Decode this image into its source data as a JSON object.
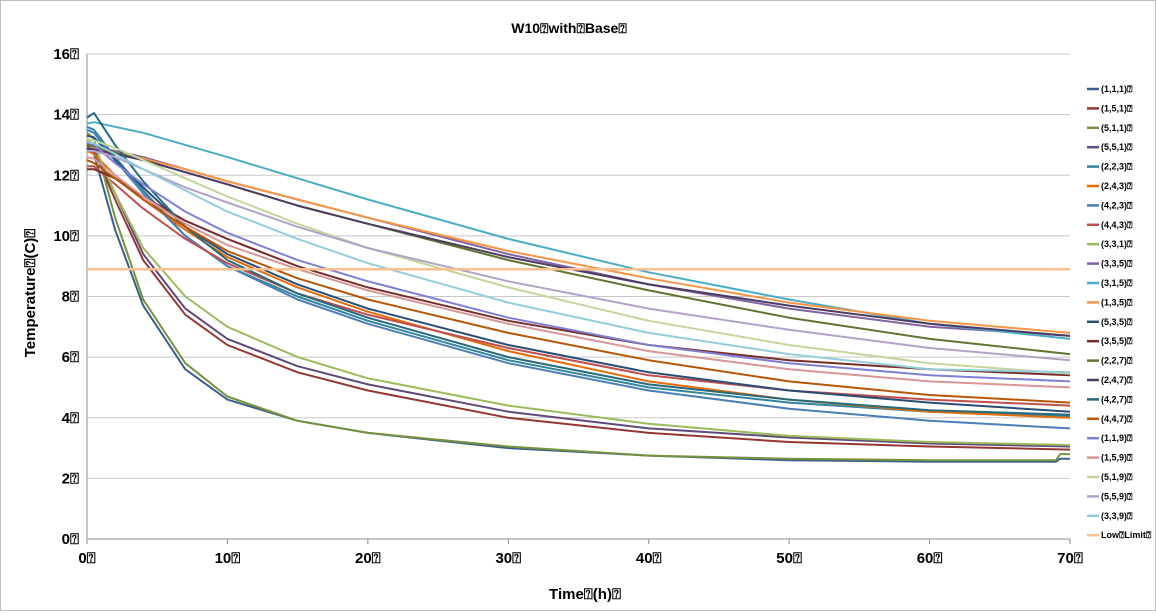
{
  "chart_data": {
    "type": "line",
    "title": "W10⍰with⍰Base⍰",
    "xlabel": "Time⍰(h)⍰",
    "ylabel": "Temperature⍰(C)⍰",
    "xlim": [
      0,
      70
    ],
    "ylim": [
      0,
      16
    ],
    "xticks": [
      {
        "value": 0,
        "label": "0⍰"
      },
      {
        "value": 10,
        "label": "10⍰"
      },
      {
        "value": 20,
        "label": "20⍰"
      },
      {
        "value": 30,
        "label": "30⍰"
      },
      {
        "value": 40,
        "label": "40⍰"
      },
      {
        "value": 50,
        "label": "50⍰"
      },
      {
        "value": 60,
        "label": "60⍰"
      },
      {
        "value": 70,
        "label": "70⍰"
      }
    ],
    "yticks": [
      {
        "value": 0,
        "label": "0⍰"
      },
      {
        "value": 2,
        "label": "2⍰"
      },
      {
        "value": 4,
        "label": "4⍰"
      },
      {
        "value": 6,
        "label": "6⍰"
      },
      {
        "value": 8,
        "label": "8⍰"
      },
      {
        "value": 10,
        "label": "10⍰"
      },
      {
        "value": 12,
        "label": "12⍰"
      },
      {
        "value": 14,
        "label": "14⍰"
      },
      {
        "value": 16,
        "label": "16⍰"
      }
    ],
    "grid": true,
    "legend_position": "right",
    "series": [
      {
        "name": "(1,1,1)⍰",
        "color": "#3a5f8c",
        "x": [
          0,
          0.5,
          2,
          4,
          7,
          10,
          15,
          20,
          30,
          40,
          50,
          60,
          69,
          69.3,
          70
        ],
        "y": [
          12.9,
          12.7,
          10.2,
          7.7,
          5.6,
          4.6,
          3.9,
          3.5,
          3.0,
          2.75,
          2.6,
          2.55,
          2.55,
          2.65,
          2.65
        ]
      },
      {
        "name": "(1,5,1)⍰",
        "color": "#963634",
        "x": [
          0,
          0.5,
          2,
          4,
          7,
          10,
          15,
          20,
          30,
          40,
          50,
          60,
          70
        ],
        "y": [
          13.0,
          12.8,
          11.2,
          9.2,
          7.4,
          6.4,
          5.5,
          4.9,
          4.0,
          3.5,
          3.2,
          3.05,
          2.95
        ]
      },
      {
        "name": "(5,1,1)⍰",
        "color": "#76923c",
        "x": [
          0,
          0.5,
          2,
          4,
          7,
          10,
          15,
          20,
          30,
          40,
          50,
          60,
          69,
          69.3,
          70
        ],
        "y": [
          13.4,
          13.2,
          10.6,
          7.9,
          5.8,
          4.7,
          3.9,
          3.5,
          3.05,
          2.75,
          2.65,
          2.6,
          2.6,
          2.8,
          2.8
        ]
      },
      {
        "name": "(5,5,1)⍰",
        "color": "#604a7b",
        "x": [
          0,
          0.5,
          2,
          4,
          7,
          10,
          15,
          20,
          30,
          40,
          50,
          60,
          70
        ],
        "y": [
          13.1,
          12.9,
          11.4,
          9.4,
          7.6,
          6.6,
          5.7,
          5.1,
          4.2,
          3.65,
          3.35,
          3.15,
          3.05
        ]
      },
      {
        "name": "(2,2,3)⍰",
        "color": "#31859c",
        "x": [
          0,
          0.5,
          2,
          4,
          7,
          10,
          15,
          20,
          30,
          40,
          50,
          60,
          70
        ],
        "y": [
          13.6,
          13.5,
          12.6,
          11.5,
          10.0,
          9.0,
          8.0,
          7.2,
          5.9,
          5.0,
          4.5,
          4.2,
          4.05
        ]
      },
      {
        "name": "(2,4,3)⍰",
        "color": "#e46c0a",
        "x": [
          0,
          0.5,
          2,
          4,
          7,
          10,
          15,
          20,
          30,
          40,
          50,
          60,
          70
        ],
        "y": [
          12.8,
          12.7,
          12.0,
          11.2,
          10.2,
          9.3,
          8.3,
          7.5,
          6.2,
          5.2,
          4.6,
          4.2,
          4.0
        ]
      },
      {
        "name": "(4,2,3)⍰",
        "color": "#4a7ebb",
        "x": [
          0,
          0.5,
          2,
          4,
          7,
          10,
          15,
          20,
          30,
          40,
          50,
          60,
          70
        ],
        "y": [
          13.5,
          13.4,
          12.5,
          11.4,
          10.0,
          9.0,
          7.9,
          7.1,
          5.8,
          4.9,
          4.3,
          3.9,
          3.65
        ]
      },
      {
        "name": "(4,4,3)⍰",
        "color": "#c0504d",
        "x": [
          0,
          0.5,
          2,
          4,
          7,
          10,
          15,
          20,
          30,
          40,
          50,
          60,
          70
        ],
        "y": [
          12.3,
          12.3,
          11.7,
          10.9,
          9.9,
          9.1,
          8.1,
          7.4,
          6.3,
          5.4,
          4.9,
          4.6,
          4.4
        ]
      },
      {
        "name": "(3,3,1)⍰",
        "color": "#9bbb59",
        "x": [
          0,
          0.5,
          2,
          4,
          7,
          10,
          15,
          20,
          30,
          40,
          50,
          60,
          70
        ],
        "y": [
          13.2,
          13.0,
          11.4,
          9.6,
          8.0,
          7.0,
          6.0,
          5.3,
          4.4,
          3.8,
          3.4,
          3.2,
          3.1
        ]
      },
      {
        "name": "(3,3,5)⍰",
        "color": "#8064a2",
        "x": [
          0,
          0.5,
          2,
          4,
          7,
          10,
          15,
          20,
          30,
          40,
          50,
          60,
          70
        ],
        "y": [
          13.0,
          12.95,
          12.8,
          12.6,
          12.2,
          11.8,
          11.2,
          10.6,
          9.4,
          8.4,
          7.6,
          7.0,
          6.7
        ]
      },
      {
        "name": "(3,1,5)⍰",
        "color": "#4bacc6",
        "x": [
          0,
          0.5,
          2,
          4,
          7,
          10,
          15,
          20,
          30,
          40,
          50,
          60,
          70
        ],
        "y": [
          13.7,
          13.75,
          13.6,
          13.4,
          13.0,
          12.6,
          11.9,
          11.2,
          9.9,
          8.8,
          7.9,
          7.1,
          6.6
        ]
      },
      {
        "name": "(1,3,5)⍰",
        "color": "#f79646",
        "x": [
          0,
          0.5,
          2,
          4,
          7,
          10,
          15,
          20,
          30,
          40,
          50,
          60,
          70
        ],
        "y": [
          12.9,
          12.9,
          12.75,
          12.55,
          12.2,
          11.8,
          11.2,
          10.6,
          9.5,
          8.6,
          7.8,
          7.2,
          6.8
        ]
      },
      {
        "name": "(5,3,5)⍰",
        "color": "#2c4d75",
        "x": [
          0,
          0.5,
          2,
          4,
          7,
          10,
          15,
          20,
          30,
          40,
          50,
          60,
          70
        ],
        "y": [
          13.3,
          13.25,
          12.5,
          11.6,
          10.3,
          9.4,
          8.4,
          7.6,
          6.4,
          5.5,
          4.9,
          4.5,
          4.2
        ]
      },
      {
        "name": "(3,5,5)⍰",
        "color": "#772c2a",
        "x": [
          0,
          0.5,
          2,
          4,
          7,
          10,
          15,
          20,
          30,
          40,
          50,
          60,
          70
        ],
        "y": [
          12.2,
          12.2,
          11.9,
          11.3,
          10.5,
          9.9,
          9.0,
          8.3,
          7.2,
          6.4,
          5.9,
          5.6,
          5.4
        ]
      },
      {
        "name": "(2,2,7)⍰",
        "color": "#5f7530",
        "x": [
          0,
          0.5,
          2,
          4,
          7,
          10,
          15,
          20,
          30,
          40,
          50,
          60,
          70
        ],
        "y": [
          13.0,
          12.95,
          12.75,
          12.5,
          12.1,
          11.7,
          11.0,
          10.4,
          9.2,
          8.2,
          7.3,
          6.6,
          6.1
        ]
      },
      {
        "name": "(2,4,7)⍰",
        "color": "#4d3b62",
        "x": [
          0,
          0.5,
          2,
          4,
          7,
          10,
          15,
          20,
          30,
          40,
          50,
          60,
          70
        ],
        "y": [
          12.9,
          12.85,
          12.7,
          12.5,
          12.1,
          11.7,
          11.0,
          10.4,
          9.3,
          8.4,
          7.7,
          7.1,
          6.7
        ]
      },
      {
        "name": "(4,2,7)⍰",
        "color": "#276a7c",
        "x": [
          0,
          0.5,
          2,
          4,
          7,
          10,
          15,
          20,
          30,
          40,
          50,
          60,
          70
        ],
        "y": [
          13.9,
          14.05,
          13.0,
          11.8,
          10.3,
          9.2,
          8.1,
          7.3,
          6.0,
          5.1,
          4.6,
          4.25,
          4.1
        ]
      },
      {
        "name": "(4,4,7)⍰",
        "color": "#b65708",
        "x": [
          0,
          0.5,
          2,
          4,
          7,
          10,
          15,
          20,
          30,
          40,
          50,
          60,
          70
        ],
        "y": [
          12.5,
          12.4,
          11.9,
          11.2,
          10.3,
          9.5,
          8.6,
          7.9,
          6.8,
          5.9,
          5.2,
          4.75,
          4.5
        ]
      },
      {
        "name": "(1,1,9)⍰",
        "color": "#7f7fd5",
        "x": [
          0,
          0.5,
          2,
          4,
          7,
          10,
          15,
          20,
          30,
          40,
          50,
          60,
          70
        ],
        "y": [
          13.1,
          13.0,
          12.4,
          11.7,
          10.8,
          10.1,
          9.2,
          8.5,
          7.3,
          6.4,
          5.8,
          5.4,
          5.2
        ]
      },
      {
        "name": "(1,5,9)⍰",
        "color": "#d99694",
        "x": [
          0,
          0.5,
          2,
          4,
          7,
          10,
          15,
          20,
          30,
          40,
          50,
          60,
          70
        ],
        "y": [
          12.6,
          12.55,
          12.0,
          11.3,
          10.4,
          9.7,
          8.9,
          8.2,
          7.1,
          6.2,
          5.6,
          5.2,
          5.0
        ]
      },
      {
        "name": "(5,1,9)⍰",
        "color": "#c3d69b",
        "x": [
          0,
          0.5,
          2,
          4,
          7,
          10,
          15,
          20,
          30,
          40,
          50,
          60,
          70
        ],
        "y": [
          13.2,
          13.15,
          12.9,
          12.5,
          11.9,
          11.3,
          10.4,
          9.6,
          8.3,
          7.2,
          6.4,
          5.8,
          5.45
        ]
      },
      {
        "name": "(5,5,9)⍰",
        "color": "#b3a2c7",
        "x": [
          0,
          0.5,
          2,
          4,
          7,
          10,
          15,
          20,
          30,
          40,
          50,
          60,
          70
        ],
        "y": [
          12.8,
          12.8,
          12.6,
          12.2,
          11.6,
          11.1,
          10.3,
          9.6,
          8.5,
          7.6,
          6.9,
          6.3,
          5.9
        ]
      },
      {
        "name": "(3,3,9)⍰",
        "color": "#92cddc",
        "x": [
          0,
          0.5,
          2,
          4,
          7,
          10,
          15,
          20,
          30,
          40,
          50,
          60,
          70
        ],
        "y": [
          13.1,
          13.05,
          12.7,
          12.2,
          11.5,
          10.8,
          9.9,
          9.1,
          7.8,
          6.8,
          6.1,
          5.6,
          5.5
        ]
      },
      {
        "name": "Low⍰Limit⍰",
        "color": "#fac090",
        "width": 2.5,
        "x": [
          0,
          70
        ],
        "y": [
          8.9,
          8.9
        ]
      }
    ]
  }
}
